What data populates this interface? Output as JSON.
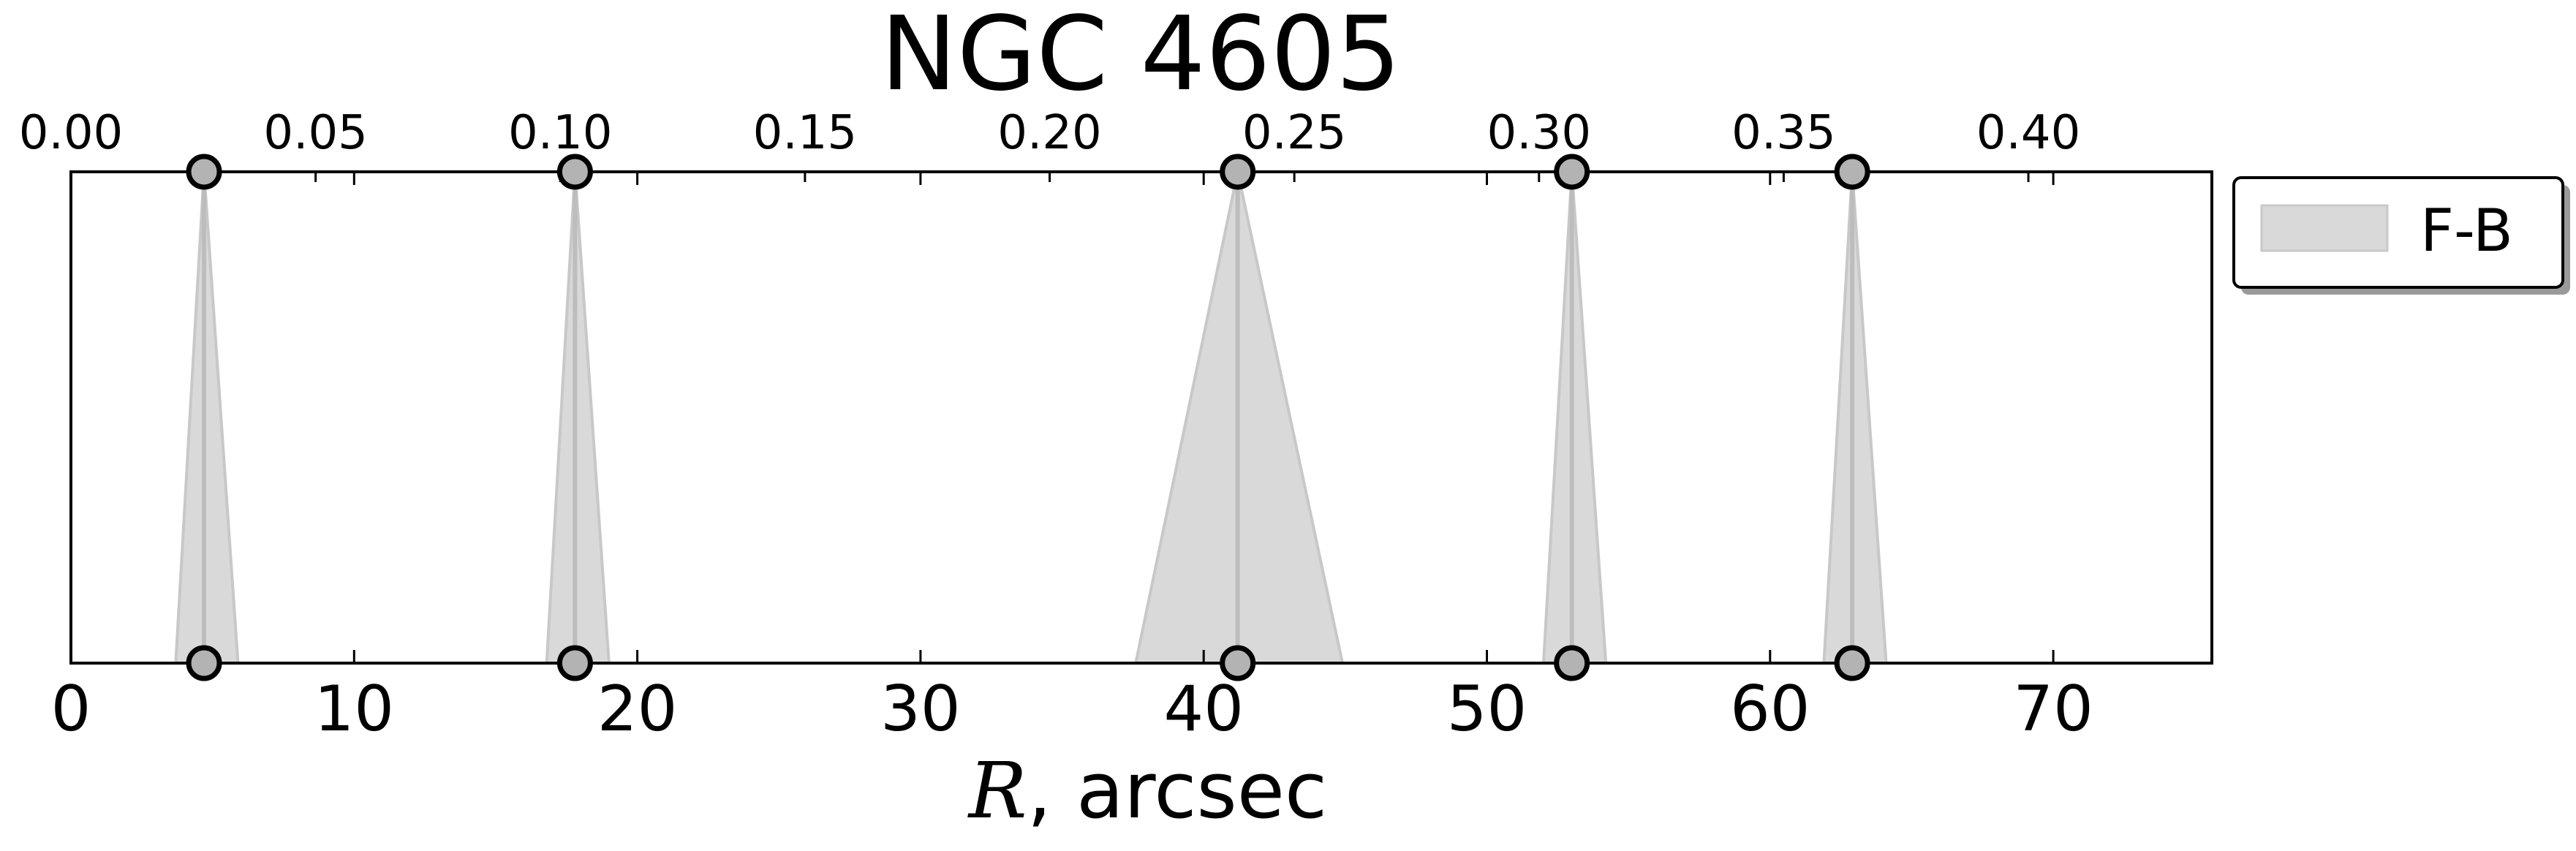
{
  "chart_data": {
    "type": "area",
    "title": "NGC 4605",
    "xlabel_var": "R",
    "xlabel_rest": ", arcsec",
    "xlim": [
      0,
      75.6
    ],
    "x_ticks": [
      0,
      10,
      20,
      30,
      40,
      50,
      60,
      70
    ],
    "x_tick_labels": [
      "0",
      "10",
      "20",
      "30",
      "40",
      "50",
      "60",
      "70"
    ],
    "top_axis": {
      "ticks": [
        0.0,
        0.05,
        0.1,
        0.15,
        0.2,
        0.25,
        0.3,
        0.35,
        0.4
      ],
      "tick_labels": [
        "0.00",
        "0.05",
        "0.10",
        "0.15",
        "0.20",
        "0.25",
        "0.30",
        "0.35",
        "0.40"
      ],
      "scale_per_arcsec": 0.005787
    },
    "ylim": [
      0,
      1
    ],
    "y_ticks_shown": false,
    "grid": false,
    "legend": {
      "placement": "outside-right-top",
      "entries": [
        "F-B"
      ]
    },
    "series": [
      {
        "name": "F-B",
        "color": "#d9d9d9",
        "edge_color": "#c8c8c8",
        "line_color": "#bdbdbd",
        "marker_face": "#b3b3b3",
        "marker_edge": "#000000",
        "features": [
          {
            "x": 4.7,
            "x_low": 3.7,
            "x_high": 5.9
          },
          {
            "x": 17.8,
            "x_low": 16.8,
            "x_high": 19.0
          },
          {
            "x": 41.2,
            "x_low": 37.6,
            "x_high": 44.9
          },
          {
            "x": 53.0,
            "x_low": 52.0,
            "x_high": 54.2
          },
          {
            "x": 62.9,
            "x_low": 61.9,
            "x_high": 64.1
          }
        ]
      }
    ]
  }
}
